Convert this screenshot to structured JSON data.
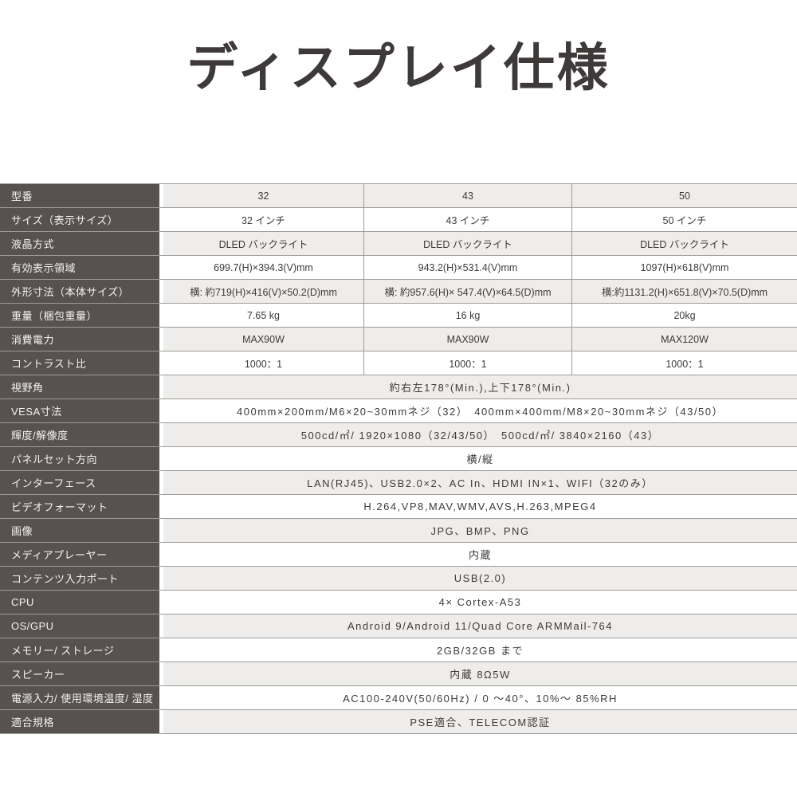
{
  "page_title": "ディスプレイ仕様",
  "colors": {
    "label_column_bg": "#575150",
    "label_text": "#f4f3f1",
    "zebra_row_bg": "#eeedec",
    "border": "#9e9c9a",
    "text": "#3e3a39"
  },
  "table": {
    "rows": [
      {
        "label": "型番",
        "cells": [
          "32",
          "43",
          "50"
        ]
      },
      {
        "label": "サイズ（表示サイズ）",
        "cells": [
          "32 インチ",
          "43 インチ",
          "50 インチ"
        ]
      },
      {
        "label": "液晶方式",
        "cells": [
          "DLED バックライト",
          "DLED バックライト",
          "DLED バックライト"
        ]
      },
      {
        "label": "有効表示領域",
        "cells": [
          "699.7(H)×394.3(V)mm",
          "943.2(H)×531.4(V)mm",
          "1097(H)×618(V)mm"
        ]
      },
      {
        "label": "外形寸法（本体サイズ）",
        "cells": [
          "横: 約719(H)×416(V)×50.2(D)mm",
          "横: 約957.6(H)× 547.4(V)×64.5(D)mm",
          "横:約1131.2(H)×651.8(V)×70.5(D)mm"
        ]
      },
      {
        "label": "重量（梱包重量）",
        "cells": [
          "7.65 kg",
          "16 kg",
          "20kg"
        ]
      },
      {
        "label": "消費電力",
        "cells": [
          "MAX90W",
          "MAX90W",
          "MAX120W"
        ]
      },
      {
        "label": "コントラスト比",
        "cells": [
          "1000：1",
          "1000：1",
          "1000：1"
        ]
      },
      {
        "label": "視野角",
        "span": "約右左178°(Min.),上下178°(Min.)"
      },
      {
        "label": "VESA寸法",
        "span": "400mm×200mm/M6×20~30mmネジ（32）　400mm×400mm/M8×20~30mmネジ（43/50）"
      },
      {
        "label": "輝度/解像度",
        "span": "500cd/㎡/ 1920×1080（32/43/50）　500cd/㎡/ 3840×2160（43）"
      },
      {
        "label": "パネルセット方向",
        "span": "横/縦"
      },
      {
        "label": "インターフェース",
        "span": "LAN(RJ45)、USB2.0×2、AC In、HDMI IN×1、WIFI（32のみ）"
      },
      {
        "label": "ビデオフォーマット",
        "span": "H.264,VP8,MAV,WMV,AVS,H.263,MPEG4"
      },
      {
        "label": "画像",
        "span": "JPG、BMP、PNG"
      },
      {
        "label": "メディアプレーヤー",
        "span": "内蔵"
      },
      {
        "label": "コンテンツ入力ポート",
        "span": "USB(2.0)"
      },
      {
        "label": "CPU",
        "span": "4× Cortex-A53"
      },
      {
        "label": "OS/GPU",
        "span": "Android 9/Android 11/Quad Core ARMMail-764"
      },
      {
        "label": "メモリー/ ストレージ",
        "span": "2GB/32GB まで"
      },
      {
        "label": "スピーカー",
        "span": "内蔵 8Ω5W"
      },
      {
        "label": "電源入力/ 使用環境温度/ 湿度",
        "span": "AC100-240V(50/60Hz) / 0 ～40°、10%～ 85%RH"
      },
      {
        "label": "適合規格",
        "span": "PSE適合、TELECOM認証"
      }
    ]
  }
}
